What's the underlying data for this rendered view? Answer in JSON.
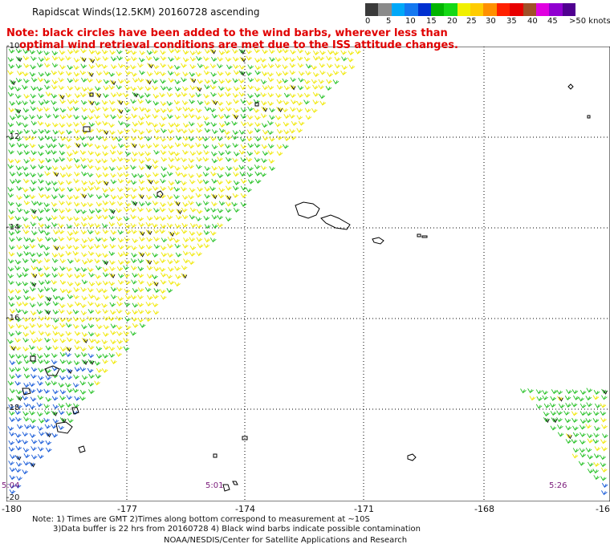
{
  "title": "Rapidscat Winds(12.5KM) 20160728 ascending",
  "note_line1": "Note: black circles have been added to the wind barbs, wherever less than",
  "note_line2": "optimal wind retrieval conditions are met due to the ISS attitude changes.",
  "colorbar": {
    "colors": [
      "#3a3a3a",
      "#8a8a8a",
      "#00a8f8",
      "#1478f0",
      "#0030d0",
      "#00b400",
      "#14d814",
      "#f0f000",
      "#ffcc00",
      "#ff9000",
      "#ff2000",
      "#e80000",
      "#a05028",
      "#e000e0",
      "#9000d0",
      "#500090"
    ],
    "labels": [
      "0",
      "5",
      "10",
      "15",
      "20",
      "25",
      "30",
      "35",
      "40",
      "45",
      ">50 knots"
    ]
  },
  "lat_labels": [
    "-10",
    "-12",
    "-14",
    "-16",
    "-18",
    "-20"
  ],
  "lon_labels": [
    "-180",
    "-177",
    "-174",
    "-171",
    "-168",
    "-16"
  ],
  "time_labels": [
    "5:04",
    "5:01",
    "5:26"
  ],
  "footer_line1": "Note: 1) Times are GMT 2)Times along bottom correspond to measurement at ~10S",
  "footer_line2": "3)Data buffer is 22 hrs from 20160728 4) Black wind barbs indicate possible contamination",
  "footer_line3": "NOAA/NESDIS/Center for Satellite Applications and Research",
  "map_data": {
    "grid_style": "dotted",
    "swath_color_main": "#f0e800",
    "swath_color_secondary": "#22c022",
    "swath_color_low": "#1458d8",
    "coast_color": "#000000"
  }
}
